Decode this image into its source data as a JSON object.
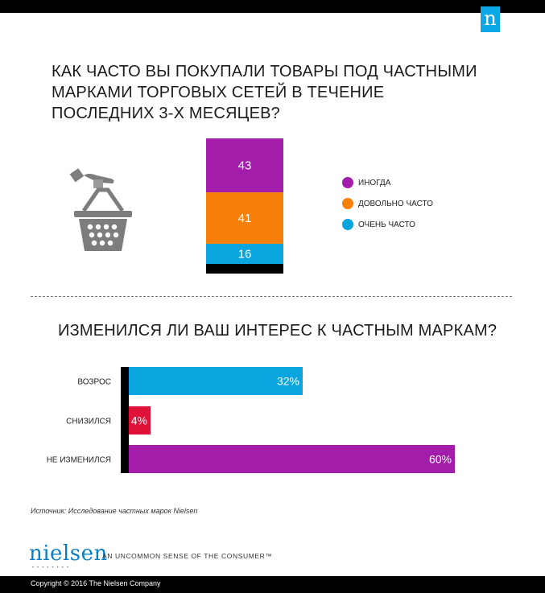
{
  "brand_mark": "n",
  "title_1": "КАК ЧАСТО ВЫ ПОКУПАЛИ ТОВАРЫ ПОД ЧАСТНЫМИ МАРКАМИ ТОРГОВЫХ СЕТЕЙ В ТЕЧЕНИЕ ПОСЛЕДНИХ 3-Х МЕСЯЦЕВ?",
  "title_2": "ИЗМЕНИЛСЯ ЛИ ВАШ ИНТЕРЕС К ЧАСТНЫМ МАРКАМ?",
  "icon": "shopping-basket-hand-icon",
  "chart_data": [
    {
      "type": "bar",
      "stacked": true,
      "series": [
        {
          "name": "ИНОГДА",
          "value": 43,
          "color": "#a31caa"
        },
        {
          "name": "ДОВОЛЬНО ЧАСТО",
          "value": 41,
          "color": "#f7800a"
        },
        {
          "name": "ОЧЕНЬ ЧАСТО",
          "value": 16,
          "color": "#0aa5de"
        }
      ],
      "legend": "right"
    },
    {
      "type": "bar",
      "orientation": "horizontal",
      "categories": [
        "ВОЗРОС",
        "СНИЗИЛСЯ",
        "НЕ ИЗМЕНИЛСЯ"
      ],
      "values": [
        32,
        4,
        60
      ],
      "labels": [
        "32%",
        "4%",
        "60%"
      ],
      "colors": [
        "#0aa5de",
        "#e0123a",
        "#a31caa"
      ]
    }
  ],
  "source": "Источник: Исследование частных марок Nielsen",
  "logo_text": "nielsen",
  "tagline": "AN UNCOMMON SENSE OF THE CONSUMER™",
  "copyright": "Copyright © 2016 The Nielsen Company"
}
